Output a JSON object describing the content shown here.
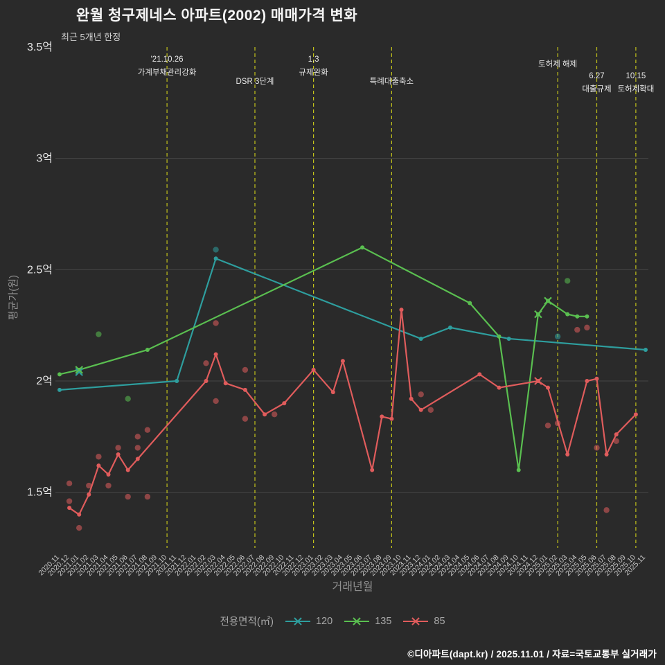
{
  "page": {
    "title": "완월 청구제네스 아파트(2002) 매매가격 변화",
    "subtitle": "최근 5개년 한정",
    "footer": "©디아파트(dapt.kr) / 2025.11.01 / 자료=국토교통부 실거래가"
  },
  "chart_data": {
    "type": "line",
    "title": "완월 청구제네스 아파트(2002) 매매가격 변화",
    "subtitle": "최근 5개년 한정",
    "xlabel": "거래년월",
    "ylabel": "평균가(원)",
    "ylim": [
      1.25,
      3.5
    ],
    "yticks": [
      {
        "v": 1.5,
        "label": "1.5억"
      },
      {
        "v": 2.0,
        "label": "2억"
      },
      {
        "v": 2.5,
        "label": "2.5억"
      },
      {
        "v": 3.0,
        "label": "3억"
      },
      {
        "v": 3.5,
        "label": "3.5억"
      }
    ],
    "grid_values": [
      1.5,
      2.0,
      2.5,
      3.0
    ],
    "grid_color": "#474747",
    "event_line_color": "#c2c21a",
    "x_categories": [
      "2020.11",
      "2020.12",
      "2021.01",
      "2021.02",
      "2021.03",
      "2021.04",
      "2021.05",
      "2021.06",
      "2021.07",
      "2021.08",
      "2021.09",
      "2021.10",
      "2021.11",
      "2021.12",
      "2022.01",
      "2022.02",
      "2022.03",
      "2022.04",
      "2022.05",
      "2022.06",
      "2022.07",
      "2022.08",
      "2022.09",
      "2022.10",
      "2022.11",
      "2022.12",
      "2023.01",
      "2023.02",
      "2023.03",
      "2023.04",
      "2023.05",
      "2023.06",
      "2023.07",
      "2023.08",
      "2023.09",
      "2023.10",
      "2023.11",
      "2023.12",
      "2024.01",
      "2024.02",
      "2024.03",
      "2024.04",
      "2024.05",
      "2024.06",
      "2024.07",
      "2024.08",
      "2024.09",
      "2024.10",
      "2024.11",
      "2024.12",
      "2025.01",
      "2025.02",
      "2025.03",
      "2025.04",
      "2025.05",
      "2025.06",
      "2025.07",
      "2025.08",
      "2025.09",
      "2025.10",
      "2025.11"
    ],
    "legend": {
      "title": "전용면적(㎡)"
    },
    "series": [
      {
        "name": "120",
        "color": "#2e9e9e",
        "points": [
          [
            "2020.11",
            1.96
          ],
          [
            "2021.11",
            2.0
          ],
          [
            "2022.03",
            2.55
          ],
          [
            "2023.12",
            2.19
          ],
          [
            "2024.03",
            2.24
          ],
          [
            "2024.09",
            2.19
          ],
          [
            "2025.11",
            2.14
          ]
        ]
      },
      {
        "name": "135",
        "color": "#5abf50",
        "points": [
          [
            "2020.11",
            2.03
          ],
          [
            "2021.01",
            2.05
          ],
          [
            "2021.08",
            2.14
          ],
          [
            "2023.06",
            2.6
          ],
          [
            "2024.05",
            2.35
          ],
          [
            "2024.08",
            2.2
          ],
          [
            "2024.10",
            1.6
          ],
          [
            "2024.12",
            2.3
          ],
          [
            "2025.01",
            2.36
          ],
          [
            "2025.03",
            2.3
          ],
          [
            "2025.04",
            2.29
          ],
          [
            "2025.05",
            2.29
          ]
        ]
      },
      {
        "name": "85",
        "color": "#e05c5c",
        "points": [
          [
            "2020.12",
            1.43
          ],
          [
            "2021.01",
            1.4
          ],
          [
            "2021.02",
            1.49
          ],
          [
            "2021.03",
            1.62
          ],
          [
            "2021.04",
            1.58
          ],
          [
            "2021.05",
            1.67
          ],
          [
            "2021.06",
            1.6
          ],
          [
            "2021.07",
            1.65
          ],
          [
            "2022.02",
            2.0
          ],
          [
            "2022.03",
            2.12
          ],
          [
            "2022.04",
            1.99
          ],
          [
            "2022.06",
            1.96
          ],
          [
            "2022.08",
            1.85
          ],
          [
            "2022.10",
            1.9
          ],
          [
            "2023.01",
            2.05
          ],
          [
            "2023.03",
            1.95
          ],
          [
            "2023.04",
            2.09
          ],
          [
            "2023.07",
            1.6
          ],
          [
            "2023.08",
            1.84
          ],
          [
            "2023.09",
            1.83
          ],
          [
            "2023.10",
            2.32
          ],
          [
            "2023.11",
            1.92
          ],
          [
            "2023.12",
            1.87
          ],
          [
            "2024.06",
            2.03
          ],
          [
            "2024.08",
            1.97
          ],
          [
            "2024.12",
            2.0
          ],
          [
            "2025.01",
            1.97
          ],
          [
            "2025.03",
            1.67
          ],
          [
            "2025.05",
            2.0
          ],
          [
            "2025.06",
            2.01
          ],
          [
            "2025.07",
            1.67
          ],
          [
            "2025.08",
            1.76
          ],
          [
            "2025.10",
            1.85
          ]
        ]
      }
    ],
    "scatter": [
      {
        "series": "120",
        "points": [
          [
            "2022.03",
            2.59
          ],
          [
            "2025.02",
            2.2
          ]
        ]
      },
      {
        "series": "135",
        "points": [
          [
            "2021.03",
            2.21
          ],
          [
            "2021.06",
            1.92
          ],
          [
            "2025.03",
            2.45
          ]
        ]
      },
      {
        "series": "85",
        "points": [
          [
            "2020.12",
            1.46
          ],
          [
            "2020.12",
            1.54
          ],
          [
            "2021.01",
            1.34
          ],
          [
            "2021.02",
            1.53
          ],
          [
            "2021.03",
            1.66
          ],
          [
            "2021.04",
            1.53
          ],
          [
            "2021.05",
            1.7
          ],
          [
            "2021.06",
            1.48
          ],
          [
            "2021.07",
            1.75
          ],
          [
            "2021.07",
            1.7
          ],
          [
            "2021.08",
            1.48
          ],
          [
            "2021.08",
            1.78
          ],
          [
            "2022.02",
            2.08
          ],
          [
            "2022.03",
            2.26
          ],
          [
            "2022.03",
            1.91
          ],
          [
            "2022.06",
            2.05
          ],
          [
            "2022.06",
            1.83
          ],
          [
            "2022.09",
            1.85
          ],
          [
            "2023.12",
            1.94
          ],
          [
            "2024.01",
            1.87
          ],
          [
            "2025.01",
            1.8
          ],
          [
            "2025.02",
            1.81
          ],
          [
            "2025.04",
            2.23
          ],
          [
            "2025.05",
            2.24
          ],
          [
            "2025.06",
            1.7
          ],
          [
            "2025.07",
            1.42
          ],
          [
            "2025.08",
            1.73
          ]
        ]
      }
    ],
    "x_markers": [
      {
        "series": "120",
        "x": "2021.01",
        "y": 2.04
      },
      {
        "series": "135",
        "x": "2021.01",
        "y": 2.05
      },
      {
        "series": "135",
        "x": "2024.12",
        "y": 2.3
      },
      {
        "series": "135",
        "x": "2025.01",
        "y": 2.36
      },
      {
        "series": "85",
        "x": "2024.12",
        "y": 2.0
      }
    ],
    "events": [
      {
        "month": "2021.10",
        "lines": [
          "'21.10.26",
          "가계부채관리강화"
        ],
        "ty": [
          89,
          108
        ]
      },
      {
        "month": "2022.07",
        "lines": [
          "DSR 3단계"
        ],
        "ty": [
          121
        ]
      },
      {
        "month": "2023.01",
        "lines": [
          "1.3",
          "규제완화"
        ],
        "ty": [
          89,
          108
        ]
      },
      {
        "month": "2023.09",
        "lines": [
          "특례대출축소"
        ],
        "ty": [
          121
        ]
      },
      {
        "month": "2025.02",
        "lines": [
          "토허제 해제"
        ],
        "ty": [
          96
        ]
      },
      {
        "month": "2025.06",
        "lines": [
          "6.27",
          "대출규제"
        ],
        "ty": [
          113,
          132
        ]
      },
      {
        "month": "2025.10",
        "lines": [
          "10.15",
          "토허제확대"
        ],
        "ty": [
          113,
          132
        ]
      }
    ]
  }
}
